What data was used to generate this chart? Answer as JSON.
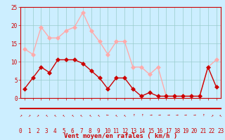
{
  "hours": [
    0,
    1,
    2,
    3,
    4,
    5,
    6,
    7,
    8,
    9,
    10,
    11,
    12,
    13,
    14,
    15,
    16,
    17,
    18,
    19,
    20,
    21,
    22,
    23
  ],
  "avg_wind": [
    2.5,
    5.5,
    8.5,
    7.0,
    10.5,
    10.5,
    10.5,
    9.5,
    7.5,
    5.5,
    2.5,
    5.5,
    5.5,
    2.5,
    0.5,
    1.5,
    0.5,
    0.5,
    0.5,
    0.5,
    0.5,
    0.5,
    8.5,
    3.0
  ],
  "gust_wind": [
    13.5,
    12.0,
    19.5,
    16.5,
    16.5,
    18.5,
    19.5,
    23.5,
    18.5,
    15.5,
    12.0,
    15.5,
    15.5,
    8.5,
    8.5,
    6.5,
    8.5,
    0.5,
    0.5,
    0.5,
    0.5,
    0.5,
    8.5,
    10.5
  ],
  "avg_color": "#cc0000",
  "gust_color": "#ffaaaa",
  "background_color": "#cceeff",
  "grid_color": "#99cccc",
  "xlabel": "Vent moyen/en rafales ( km/h )",
  "ylim": [
    0,
    25
  ],
  "yticks": [
    0,
    5,
    10,
    15,
    20,
    25
  ],
  "tick_color": "#cc0000",
  "xlabel_color": "#cc0000",
  "markersize": 3,
  "linewidth": 1.0,
  "arrow_symbols": [
    "↗",
    "↗",
    "↗",
    "↖",
    "↖",
    "↖",
    "↖",
    "↖",
    "↖",
    "↖",
    "←",
    "↖",
    "↖",
    "↑",
    "↑",
    "→",
    "→",
    "→",
    "→",
    "→",
    "→",
    "↑",
    "↗",
    "↖"
  ],
  "bottom_line_color": "#cc0000"
}
